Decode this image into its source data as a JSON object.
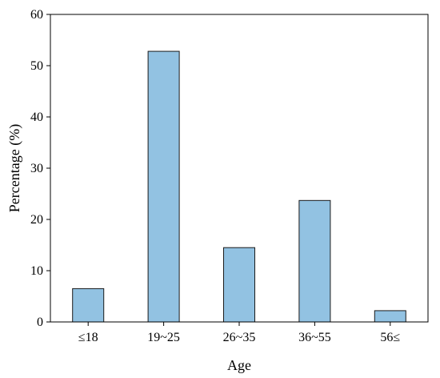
{
  "chart_data": {
    "type": "bar",
    "categories": [
      "≤18",
      "19~25",
      "26~35",
      "36~55",
      "56≤"
    ],
    "values": [
      6.5,
      52.8,
      14.5,
      23.7,
      2.2
    ],
    "xlabel": "Age",
    "ylabel": "Percentage (%)",
    "ylim": [
      0,
      60
    ],
    "yticks": [
      0,
      10,
      20,
      30,
      40,
      50,
      60
    ],
    "bar_color": "#92c2e2",
    "bar_edge_color": "#1a1a1a",
    "grid": false,
    "legend": "none"
  }
}
